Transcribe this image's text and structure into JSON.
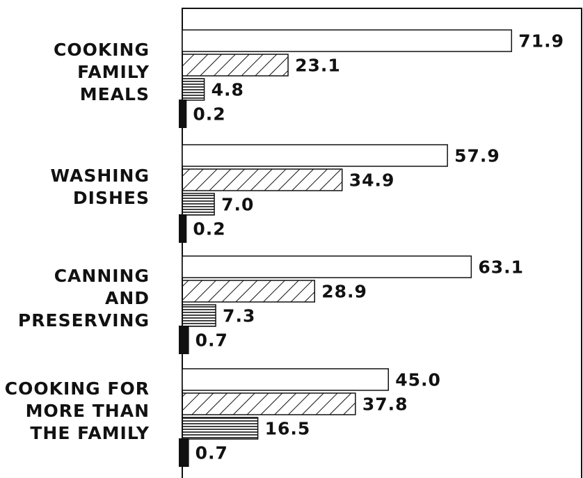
{
  "chart_data": {
    "type": "bar",
    "orientation": "horizontal",
    "categories": [
      [
        "COOKING",
        "FAMILY",
        "MEALS"
      ],
      [
        "WASHING",
        "DISHES"
      ],
      [
        "CANNING",
        "AND",
        "PRESERVING"
      ],
      [
        "COOKING FOR",
        "MORE THAN",
        "THE FAMILY"
      ]
    ],
    "xlim": [
      0,
      87.5
    ],
    "series": [
      {
        "color": "#111111",
        "pattern": "none",
        "values": [
          71.9,
          57.9,
          63.1,
          45.0
        ],
        "value_labels": [
          "71.9",
          "57.9",
          "63.1",
          "45.0"
        ]
      },
      {
        "color": "#111111",
        "pattern": "diagonal",
        "values": [
          23.1,
          34.9,
          28.9,
          37.8
        ],
        "value_labels": [
          "23.1",
          "34.9",
          "28.9",
          "37.8"
        ]
      },
      {
        "color": "#111111",
        "pattern": "horizontal",
        "values": [
          4.8,
          7.0,
          7.3,
          16.5
        ],
        "value_labels": [
          "4.8",
          "7.0",
          "7.3",
          "16.5"
        ]
      },
      {
        "color": "#111111",
        "pattern": "solid",
        "values": [
          0.2,
          0.2,
          0.7,
          0.7
        ],
        "value_labels": [
          "0.2",
          "0.2",
          "0.7",
          "0.7"
        ]
      }
    ]
  }
}
